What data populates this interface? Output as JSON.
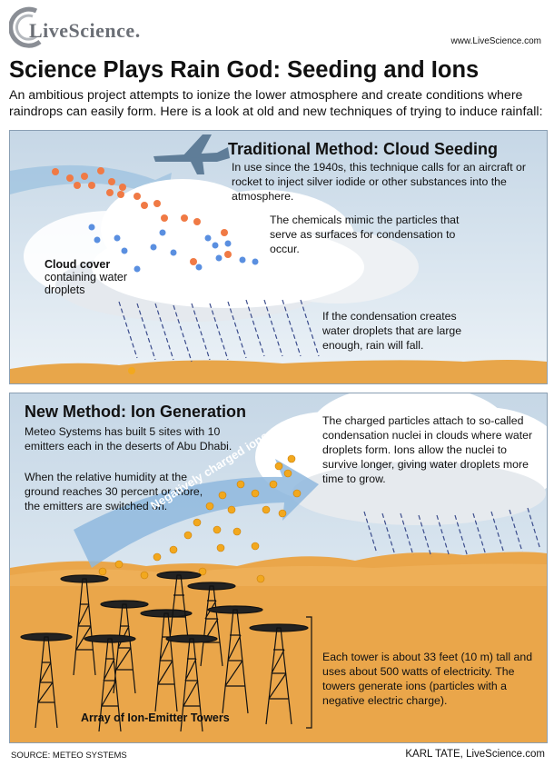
{
  "header": {
    "logo_text": "LiveScience.",
    "url": "www.LiveScience.com",
    "title": "Science Plays Rain God: Seeding and Ions",
    "intro": "An ambitious project attempts to ionize the lower atmosphere and create conditions where raindrops can easily form. Here is a look at old and new techniques of trying to induce rainfall:"
  },
  "traditional": {
    "title": "Traditional Method: Cloud Seeding",
    "description": "In use since the 1940s, this technique calls for an aircraft or rocket to inject silver iodide or other substances into the atmosphere.",
    "chemicals_note": "The chemicals mimic the particles that serve as surfaces for condensation to occur.",
    "cloud_label_bold": "Cloud cover",
    "cloud_label_rest": "containing water droplets",
    "rain_note": "If the condensation creates water droplets that are large enough, rain will fall."
  },
  "ion_method": {
    "title": "New Method: Ion Generation",
    "sites": "Meteo Systems has built 5 sites with 10 emitters each in the deserts of Abu Dhabi.",
    "humidity": "When the relative humidity at the ground reaches 30 percent or more, the emitters are switched on.",
    "nuclei": "The charged particles attach to so-called condensation nuclei in clouds where water droplets form. Ions allow the nuclei to survive longer, giving water droplets more time to grow.",
    "arrow_label": "Negatively charged ions",
    "tower_spec": "Each tower is about 33 feet (10 m) tall and uses about 500 watts of electricity. The towers generate ions (particles with a negative electric charge).",
    "array_label": "Array of Ion-Emitter Towers"
  },
  "footer": {
    "source": "SOURCE: METEO SYSTEMS",
    "credit": "KARL TATE, LiveScience.com"
  },
  "colors": {
    "sky": "#c6d7e6",
    "sand": "#e8a64a",
    "orange_particle": "#f07a45",
    "blue_particle": "#5a8fe0",
    "gold_ion": "#f2a81e",
    "plane": "#5f7d98"
  }
}
